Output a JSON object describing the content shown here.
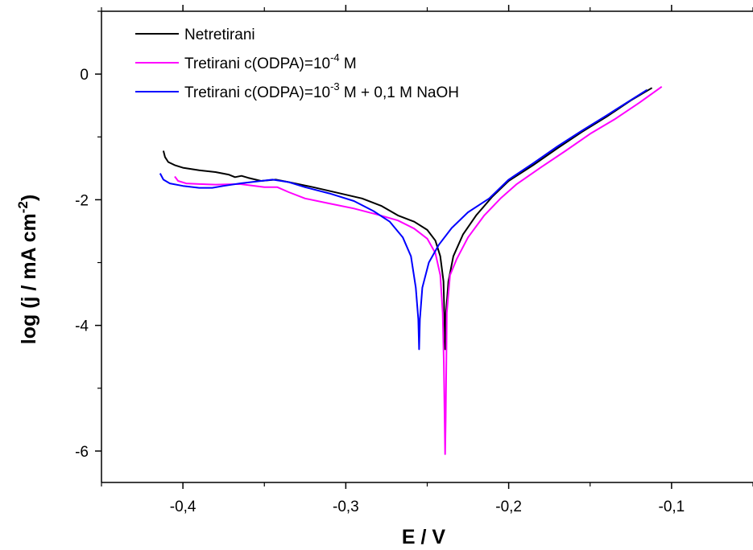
{
  "chart_data": {
    "type": "line",
    "title": "",
    "xlabel": "E  / V",
    "ylabel": {
      "prefix": "log (j / mA cm",
      "sup": "-2",
      "suffix": ")"
    },
    "xlim": [
      -0.45,
      -0.05
    ],
    "ylim": [
      -6.5,
      1.0
    ],
    "xticks": [
      -0.4,
      -0.3,
      -0.2,
      -0.1
    ],
    "xtick_labels": [
      "-0,4",
      "-0,3",
      "-0,2",
      "-0,1"
    ],
    "yticks": [
      0,
      -2,
      -4,
      -6
    ],
    "ytick_labels": [
      "0",
      "-2",
      "-4",
      "-6"
    ],
    "grid": false,
    "legend_position": "top-left",
    "series": [
      {
        "name": "Netretirani",
        "name_parts": {
          "prefix": "Netretirani",
          "sup": "",
          "suffix": ""
        },
        "color": "#000000",
        "points": [
          [
            -0.412,
            -1.22
          ],
          [
            -0.411,
            -1.32
          ],
          [
            -0.409,
            -1.4
          ],
          [
            -0.405,
            -1.45
          ],
          [
            -0.4,
            -1.49
          ],
          [
            -0.39,
            -1.53
          ],
          [
            -0.38,
            -1.56
          ],
          [
            -0.372,
            -1.6
          ],
          [
            -0.368,
            -1.64
          ],
          [
            -0.364,
            -1.62
          ],
          [
            -0.36,
            -1.65
          ],
          [
            -0.352,
            -1.7
          ],
          [
            -0.343,
            -1.68
          ],
          [
            -0.335,
            -1.72
          ],
          [
            -0.32,
            -1.8
          ],
          [
            -0.305,
            -1.89
          ],
          [
            -0.29,
            -1.98
          ],
          [
            -0.278,
            -2.1
          ],
          [
            -0.268,
            -2.25
          ],
          [
            -0.258,
            -2.35
          ],
          [
            -0.25,
            -2.48
          ],
          [
            -0.245,
            -2.65
          ],
          [
            -0.242,
            -2.9
          ],
          [
            -0.24,
            -3.3
          ],
          [
            -0.2395,
            -3.8
          ],
          [
            -0.239,
            -4.38
          ],
          [
            -0.2385,
            -3.8
          ],
          [
            -0.237,
            -3.3
          ],
          [
            -0.234,
            -2.9
          ],
          [
            -0.228,
            -2.55
          ],
          [
            -0.22,
            -2.25
          ],
          [
            -0.21,
            -1.95
          ],
          [
            -0.2,
            -1.7
          ],
          [
            -0.185,
            -1.45
          ],
          [
            -0.17,
            -1.18
          ],
          [
            -0.155,
            -0.92
          ],
          [
            -0.14,
            -0.68
          ],
          [
            -0.125,
            -0.42
          ],
          [
            -0.112,
            -0.22
          ]
        ]
      },
      {
        "name": "Tretirani c(ODPA)=10-4 M",
        "name_parts": {
          "prefix": "Tretirani c(ODPA)=10",
          "sup": "-4",
          "suffix": " M"
        },
        "color": "#ff00ff",
        "points": [
          [
            -0.405,
            -1.63
          ],
          [
            -0.403,
            -1.7
          ],
          [
            -0.398,
            -1.74
          ],
          [
            -0.39,
            -1.75
          ],
          [
            -0.38,
            -1.76
          ],
          [
            -0.365,
            -1.75
          ],
          [
            -0.35,
            -1.8
          ],
          [
            -0.342,
            -1.8
          ],
          [
            -0.335,
            -1.88
          ],
          [
            -0.325,
            -1.98
          ],
          [
            -0.31,
            -2.06
          ],
          [
            -0.295,
            -2.14
          ],
          [
            -0.28,
            -2.24
          ],
          [
            -0.268,
            -2.33
          ],
          [
            -0.258,
            -2.46
          ],
          [
            -0.25,
            -2.62
          ],
          [
            -0.245,
            -2.85
          ],
          [
            -0.242,
            -3.2
          ],
          [
            -0.2405,
            -3.8
          ],
          [
            -0.2398,
            -4.6
          ],
          [
            -0.2393,
            -5.5
          ],
          [
            -0.239,
            -6.05
          ],
          [
            -0.2387,
            -5.5
          ],
          [
            -0.2383,
            -4.6
          ],
          [
            -0.238,
            -3.8
          ],
          [
            -0.236,
            -3.2
          ],
          [
            -0.232,
            -2.95
          ],
          [
            -0.225,
            -2.6
          ],
          [
            -0.215,
            -2.25
          ],
          [
            -0.205,
            -1.98
          ],
          [
            -0.195,
            -1.75
          ],
          [
            -0.18,
            -1.48
          ],
          [
            -0.165,
            -1.22
          ],
          [
            -0.15,
            -0.95
          ],
          [
            -0.135,
            -0.72
          ],
          [
            -0.12,
            -0.46
          ],
          [
            -0.106,
            -0.2
          ]
        ]
      },
      {
        "name": "Tretirani c(ODPA)=10-3 M + 0,1 M NaOH",
        "name_parts": {
          "prefix": "Tretirani c(ODPA)=10",
          "sup": "-3",
          "suffix": " M + 0,1 M NaOH"
        },
        "color": "#0000ff",
        "points": [
          [
            -0.414,
            -1.58
          ],
          [
            -0.412,
            -1.68
          ],
          [
            -0.408,
            -1.74
          ],
          [
            -0.4,
            -1.78
          ],
          [
            -0.39,
            -1.81
          ],
          [
            -0.382,
            -1.81
          ],
          [
            -0.375,
            -1.78
          ],
          [
            -0.365,
            -1.74
          ],
          [
            -0.355,
            -1.71
          ],
          [
            -0.345,
            -1.68
          ],
          [
            -0.335,
            -1.72
          ],
          [
            -0.325,
            -1.8
          ],
          [
            -0.31,
            -1.9
          ],
          [
            -0.295,
            -2.02
          ],
          [
            -0.283,
            -2.18
          ],
          [
            -0.273,
            -2.35
          ],
          [
            -0.265,
            -2.6
          ],
          [
            -0.26,
            -2.9
          ],
          [
            -0.257,
            -3.4
          ],
          [
            -0.2555,
            -3.9
          ],
          [
            -0.255,
            -4.38
          ],
          [
            -0.2545,
            -3.9
          ],
          [
            -0.253,
            -3.4
          ],
          [
            -0.249,
            -3.0
          ],
          [
            -0.243,
            -2.72
          ],
          [
            -0.235,
            -2.45
          ],
          [
            -0.225,
            -2.2
          ],
          [
            -0.212,
            -1.98
          ],
          [
            -0.2,
            -1.68
          ],
          [
            -0.185,
            -1.42
          ],
          [
            -0.17,
            -1.15
          ],
          [
            -0.155,
            -0.9
          ],
          [
            -0.14,
            -0.66
          ],
          [
            -0.126,
            -0.43
          ],
          [
            -0.115,
            -0.25
          ]
        ]
      }
    ]
  }
}
